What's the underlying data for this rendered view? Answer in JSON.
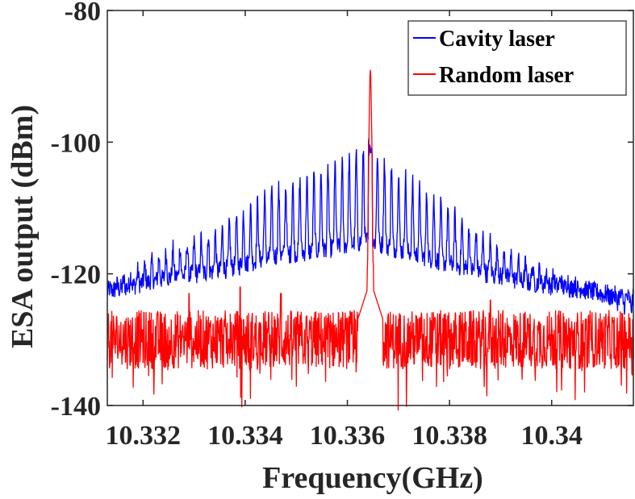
{
  "chart_data": {
    "type": "line",
    "title": "",
    "xlabel": "Frequency(GHz)",
    "ylabel": "ESA output (dBm)",
    "xlim": [
      10.3313,
      10.3416
    ],
    "ylim": [
      -140,
      -80
    ],
    "xticks": [
      10.332,
      10.334,
      10.336,
      10.338,
      10.34
    ],
    "xtick_labels": [
      "10.332",
      "10.334",
      "10.336",
      "10.338",
      "10.34"
    ],
    "yticks": [
      -140,
      -120,
      -100,
      -80
    ],
    "ytick_labels": [
      "-140",
      "-120",
      "-100",
      "-80"
    ],
    "grid": false,
    "legend_position": "top-right",
    "center_frequency": 10.33645,
    "series": [
      {
        "name": "Cavity laser",
        "color": "#0000ff",
        "mode_spacing_ghz": 0.000138,
        "peak_envelope": {
          "x": [
            10.3313,
            10.3325,
            10.3335,
            10.3345,
            10.3355,
            10.3364,
            10.3375,
            10.3385,
            10.3395,
            10.3405,
            10.3416
          ],
          "y": [
            -121,
            -115,
            -112,
            -106,
            -103,
            -99,
            -106,
            -112,
            -117,
            -120,
            -124
          ]
        },
        "floor_level": -126,
        "noise_amplitude": 3
      },
      {
        "name": "Random laser",
        "color": "#ff0000",
        "peak": {
          "x": 10.33645,
          "y": -89
        },
        "noise_floor": {
          "x": [
            10.3313,
            10.3416
          ],
          "y": [
            -130,
            -130
          ]
        },
        "noise_amplitude": 4.5,
        "noise_min": -141,
        "spikes": [
          {
            "x": 10.3329,
            "y": -123
          },
          {
            "x": 10.3339,
            "y": -122
          },
          {
            "x": 10.3347,
            "y": -123
          },
          {
            "x": 10.3388,
            "y": -124
          }
        ]
      }
    ]
  }
}
